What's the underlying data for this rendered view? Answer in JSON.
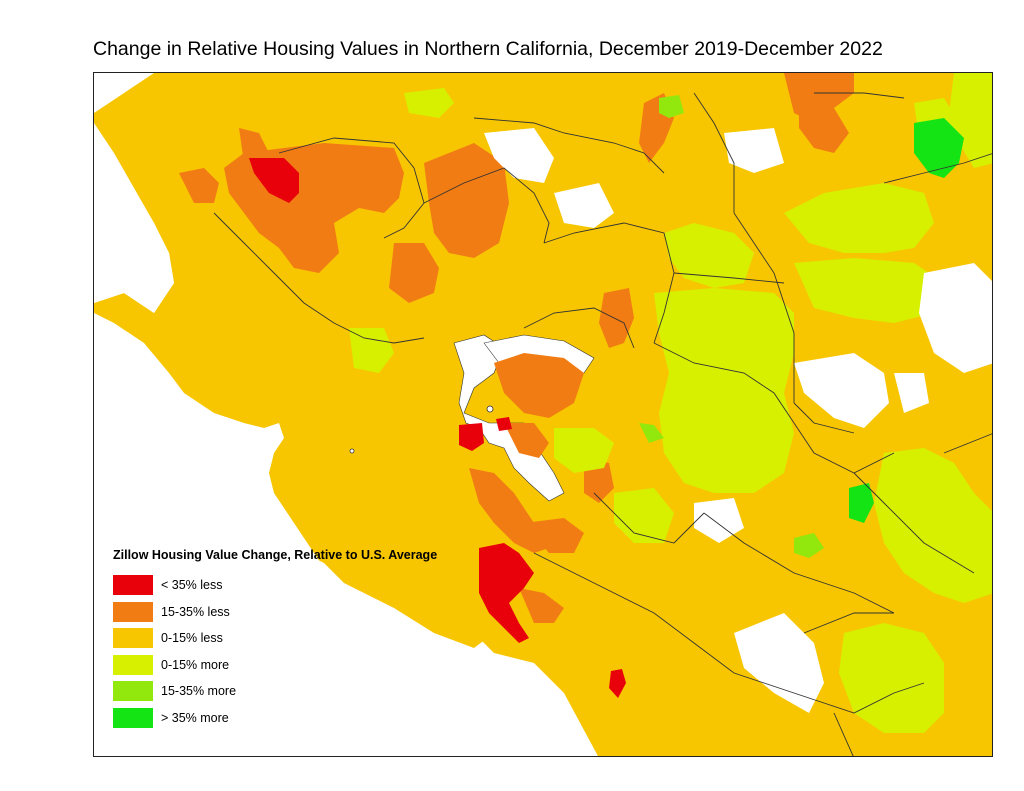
{
  "title": "Change in Relative Housing Values in Northern California, December 2019-December 2022",
  "legend": {
    "title": "Zillow Housing Value Change, Relative to U.S. Average",
    "items": [
      {
        "label": "< 35% less",
        "color": "#e8000b"
      },
      {
        "label": "15-35% less",
        "color": "#f27c14"
      },
      {
        "label": "0-15% less",
        "color": "#f7c600"
      },
      {
        "label": "0-15% more",
        "color": "#d7f000"
      },
      {
        "label": "15-35% more",
        "color": "#92e80c"
      },
      {
        "label": "> 35% more",
        "color": "#14e414"
      }
    ]
  },
  "colors": {
    "water": "#ffffff",
    "county_border": "#333333",
    "no_data": "#ffffff"
  }
}
